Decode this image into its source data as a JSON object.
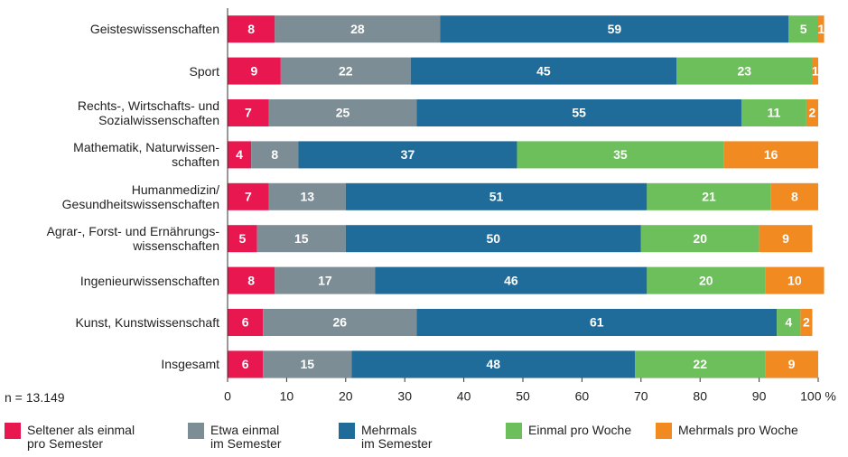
{
  "chart_data": {
    "type": "stacked-barh",
    "categories": [
      "Geisteswissenschaften",
      "Sport",
      "Rechts-, Wirtschafts- und\nSozialwissenschaften",
      "Mathematik, Naturwissen-\nschaften",
      "Humanmedizin/\nGesundheitswissenschaften",
      "Agrar-, Forst- und Ernährungs-\nwissenschaften",
      "Ingenieurwissenschaften",
      "Kunst, Kunstwissenschaft",
      "Insgesamt"
    ],
    "series": [
      {
        "name": "Seltener als einmal\npro Semester",
        "color": "#e8174f",
        "values": [
          8,
          9,
          7,
          4,
          7,
          5,
          8,
          6,
          6
        ]
      },
      {
        "name": "Etwa einmal\nim Semester",
        "color": "#7d8d95",
        "values": [
          28,
          22,
          25,
          8,
          13,
          15,
          17,
          26,
          15
        ]
      },
      {
        "name": "Mehrmals\nim Semester",
        "color": "#1f6c9b",
        "values": [
          59,
          45,
          55,
          37,
          51,
          50,
          46,
          61,
          48
        ]
      },
      {
        "name": "Einmal pro Woche",
        "color": "#6cbf5a",
        "values": [
          5,
          23,
          11,
          35,
          21,
          20,
          20,
          4,
          22
        ]
      },
      {
        "name": "Mehrmals pro Woche",
        "color": "#f28a22",
        "values": [
          1,
          1,
          2,
          16,
          8,
          9,
          10,
          2,
          9
        ]
      }
    ],
    "xlim": [
      0,
      100
    ],
    "xticks": [
      0,
      10,
      20,
      30,
      40,
      50,
      60,
      70,
      80,
      {
        "value": 90,
        "label": "90"
      },
      {
        "value": 100,
        "label": "100 %"
      }
    ],
    "note": "n = 13.149"
  }
}
